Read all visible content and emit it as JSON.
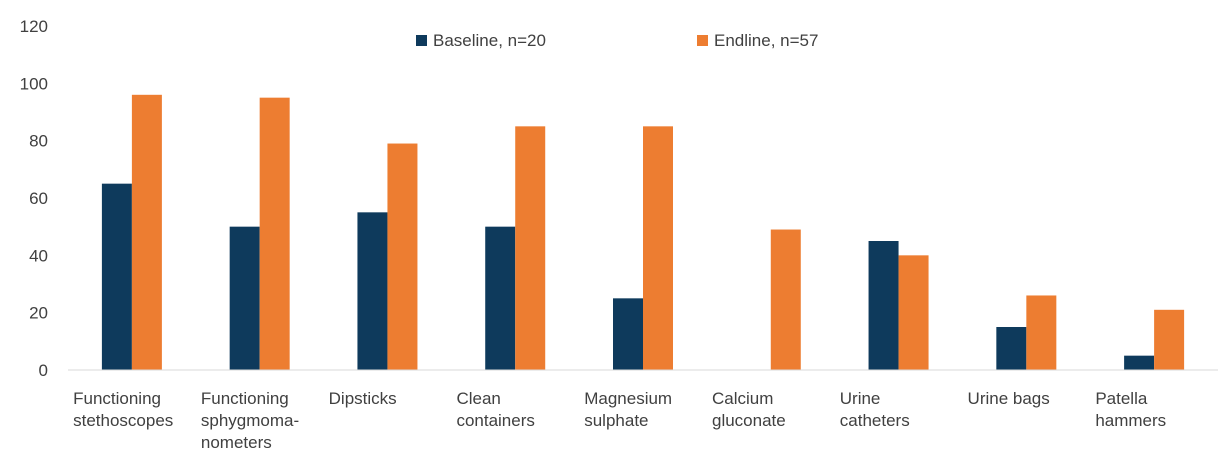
{
  "chart_data": {
    "type": "bar",
    "title": "",
    "xlabel": "",
    "ylabel": "",
    "ylim": [
      0,
      120
    ],
    "yticks": [
      0,
      20,
      40,
      60,
      80,
      100,
      120
    ],
    "grid": false,
    "legend_position": "top-center",
    "categories": [
      [
        "Functioning",
        "stethoscopes"
      ],
      [
        "Functioning",
        "sphygmoma-",
        "nometers"
      ],
      [
        "Dipsticks"
      ],
      [
        "Clean",
        "containers"
      ],
      [
        "Magnesium",
        "sulphate"
      ],
      [
        "Calcium",
        "gluconate"
      ],
      [
        "Urine",
        "catheters"
      ],
      [
        "Urine bags"
      ],
      [
        "Patella",
        "hammers"
      ]
    ],
    "series": [
      {
        "name": "Baseline, n=20",
        "color": "#0e3a5c",
        "values": [
          65,
          50,
          55,
          50,
          25,
          0,
          45,
          15,
          5
        ]
      },
      {
        "name": "Endline, n=57",
        "color": "#ed7d31",
        "values": [
          96,
          95,
          79,
          85,
          85,
          49,
          40,
          26,
          21
        ]
      }
    ]
  }
}
